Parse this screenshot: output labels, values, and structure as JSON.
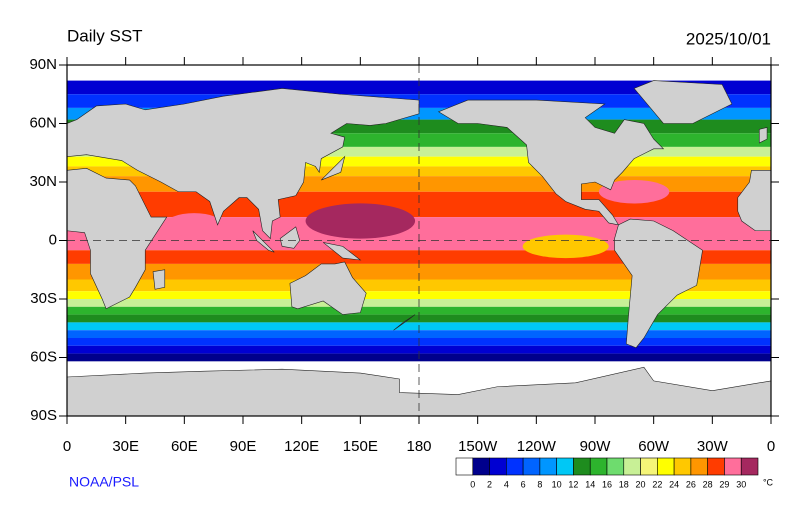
{
  "header": {
    "title": "Daily SST",
    "date": "2025/10/01"
  },
  "map": {
    "lat_ticks": [
      {
        "value": 90,
        "label": "90N"
      },
      {
        "value": 60,
        "label": "60N"
      },
      {
        "value": 30,
        "label": "30N"
      },
      0,
      {
        "value": -30,
        "label": "30S"
      },
      {
        "value": -60,
        "label": "60S"
      },
      {
        "value": -90,
        "label": "90S"
      }
    ],
    "lon_ticks": [
      0,
      {
        "value": 30,
        "label": "30E"
      },
      {
        "value": 60,
        "label": "60E"
      },
      {
        "value": 90,
        "label": "90E"
      },
      {
        "value": 120,
        "label": "120E"
      },
      {
        "value": 150,
        "label": "150E"
      },
      180,
      {
        "value": 210,
        "label": "150W"
      },
      {
        "value": 240,
        "label": "120W"
      },
      {
        "value": 270,
        "label": "90W"
      },
      {
        "value": 300,
        "label": "60W"
      },
      {
        "value": 330,
        "label": "30W"
      },
      {
        "value": 360,
        "label": "0"
      }
    ]
  },
  "colorbar": {
    "levels": [
      0,
      2,
      4,
      6,
      8,
      10,
      12,
      14,
      16,
      18,
      20,
      22,
      24,
      26,
      28,
      29,
      30
    ],
    "colors": [
      "#ffffff",
      "#00008c",
      "#0000d2",
      "#0032ff",
      "#0064ff",
      "#0096ff",
      "#00c8f5",
      "#1e8c1e",
      "#2db42d",
      "#6edc6e",
      "#c8f096",
      "#f5f578",
      "#ffff00",
      "#ffc800",
      "#ff9600",
      "#ff3c00",
      "#ff6e9b",
      "#a5285f"
    ],
    "unit": "°C"
  },
  "credit": "NOAA/PSL"
}
